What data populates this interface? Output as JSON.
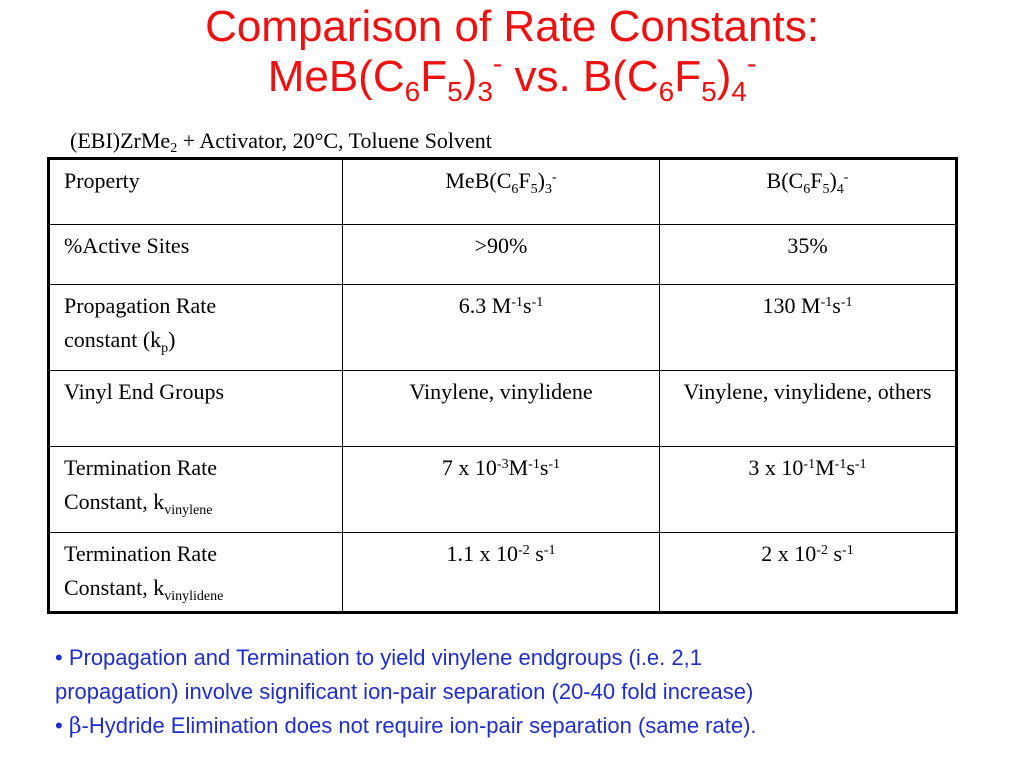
{
  "colors": {
    "title": "#ee1111",
    "notes": "#1f2ecf"
  },
  "title": {
    "line1": "Comparison of Rate Constants:",
    "line2": {
      "p1": "MeB(C",
      "s1": "6",
      "p2": "F",
      "s2": "5",
      "p3": ")",
      "s3": "3",
      "sup1": "-",
      "p4": " vs. B(C",
      "s4": "6",
      "p5": "F",
      "s5": "5",
      "p6": ")",
      "s6": "4",
      "sup2": "-"
    }
  },
  "subtitle": {
    "p1": "(EBI)ZrMe",
    "sub": "2",
    "p2": " + Activator, 20°C, Toluene Solvent"
  },
  "table": {
    "header": {
      "property": "Property",
      "col_a": {
        "p1": "MeB(C",
        "s1": "6",
        "p2": "F",
        "s2": "5",
        "p3": ")",
        "s3": "3",
        "sup": "-"
      },
      "col_b": {
        "p1": "B(C",
        "s1": "6",
        "p2": "F",
        "s2": "5",
        "p3": ")",
        "s3": "4",
        "sup": "-"
      }
    },
    "active_sites": {
      "label": "%Active Sites",
      "a": ">90%",
      "b": "35%"
    },
    "propagation": {
      "label1": "Propagation Rate",
      "label2a": "constant (k",
      "label2_sub": "p",
      "label2b": ")",
      "a": {
        "base": "6.3 M",
        "e1": "-1",
        "unit": "s",
        "e2": "-1"
      },
      "b": {
        "base": "130 M",
        "e1": "-1",
        "unit": "s",
        "e2": "-1"
      }
    },
    "vinyl_end_groups": {
      "label": "Vinyl End Groups",
      "a": "Vinylene, vinylidene",
      "b": "Vinylene, vinylidene, others"
    },
    "term_vinylene": {
      "label1": "Termination Rate",
      "label2": "Constant, k",
      "label_sub": "vinylene",
      "a": {
        "base": "7 x 10",
        "e0": "-3",
        "m": "M",
        "e1": "-1",
        "s": "s",
        "e2": "-1"
      },
      "b": {
        "base": "3 x 10",
        "e0": "-1",
        "m": "M",
        "e1": "-1",
        "s": "s",
        "e2": "-1"
      }
    },
    "term_vinylidene": {
      "label1": "Termination Rate",
      "label2": "Constant, k",
      "label_sub": "vinylidene",
      "a": {
        "base": "1.1 x 10",
        "e0": "-2",
        "s": " s",
        "e1": "-1"
      },
      "b": {
        "base": "2 x 10",
        "e0": "-2",
        "s": " s",
        "e1": "-1"
      }
    }
  },
  "notes": {
    "bullet1a": "•  Propagation and Termination to yield vinylene endgroups (i.e. 2,1",
    "bullet1b": "propagation) involve significant ion-pair separation (20-40 fold increase)",
    "bullet2_prefix": "• ",
    "beta": "β",
    "bullet2_rest": "-Hydride Elimination does not require ion-pair separation (same rate)."
  }
}
